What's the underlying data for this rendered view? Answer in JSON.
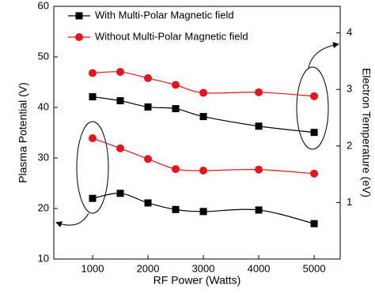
{
  "chart_data": {
    "type": "line",
    "x_label": "RF Power (Watts)",
    "y_label": "Plasma Potential (V)",
    "y2_label": "Electron Temperature (eV)",
    "x": [
      1000,
      1500,
      2000,
      2500,
      3000,
      4000,
      5000
    ],
    "xlim": [
      300,
      5470
    ],
    "xticks": [
      1000,
      2000,
      3000,
      4000,
      5000
    ],
    "ylim": [
      10,
      60
    ],
    "yticks": [
      10,
      20,
      30,
      40,
      50,
      60
    ],
    "y2lim": [
      0,
      4.47
    ],
    "y2ticks": [
      1,
      2,
      3,
      4
    ],
    "series": [
      {
        "name": "With Multi-Polar Magnetic field",
        "color": "#000000",
        "marker": "square",
        "axis": "y2",
        "values": [
          2.87,
          2.8,
          2.69,
          2.66,
          2.52,
          2.35,
          2.24
        ]
      },
      {
        "name": "Without Multi-Polar Magnetic field",
        "color": "#e8141c",
        "marker": "circle",
        "axis": "y2",
        "values": [
          3.29,
          3.31,
          3.2,
          3.08,
          2.94,
          2.95,
          2.88
        ]
      },
      {
        "name": "With Multi-Polar Magnetic field",
        "color": "#000000",
        "marker": "square",
        "values": [
          22,
          23,
          21.1,
          19.8,
          19.4,
          19.7,
          17
        ]
      },
      {
        "name": "Without Multi-Polar Magnetic field",
        "color": "#e8141c",
        "marker": "circle",
        "values": [
          33.9,
          31.9,
          29.8,
          27.8,
          27.5,
          27.7,
          26.9
        ]
      }
    ],
    "legend_series": [
      0,
      1
    ]
  }
}
